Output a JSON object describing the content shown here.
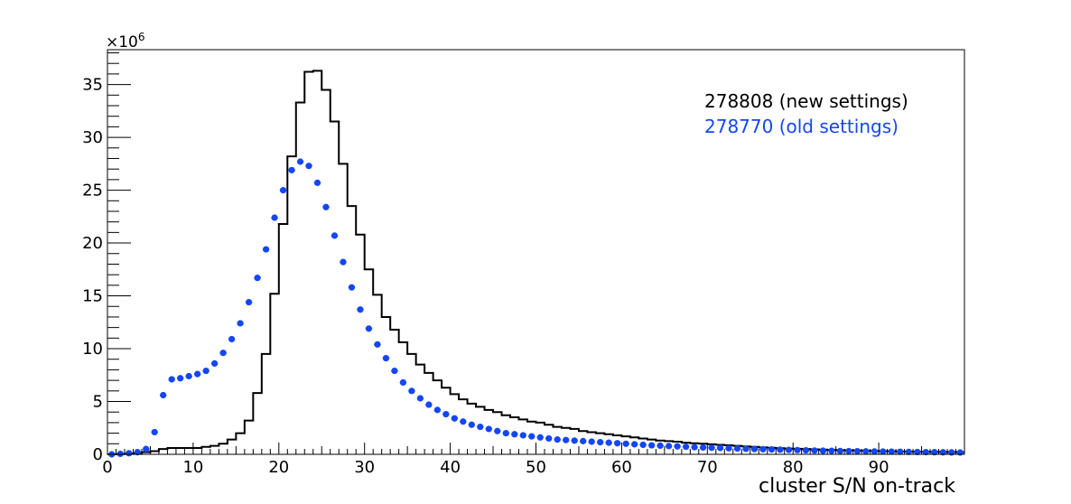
{
  "chart_data": {
    "type": "histogram",
    "xlabel": "cluster S/N on-track",
    "ylabel": "",
    "y_multiplier_label": "×10",
    "y_multiplier_exponent": "6",
    "xlim": [
      0,
      100
    ],
    "ylim": [
      0,
      38.3
    ],
    "x_ticks": [
      0,
      10,
      20,
      30,
      40,
      50,
      60,
      70,
      80,
      90
    ],
    "y_ticks": [
      0,
      5,
      10,
      15,
      20,
      25,
      30,
      35
    ],
    "bin_width": 1,
    "grid": false,
    "legend_position": "top-right",
    "series": [
      {
        "name": "278808 (new settings)",
        "style": "step",
        "color": "#000000",
        "values": [
          0,
          0.02,
          0.05,
          0.1,
          0.2,
          0.3,
          0.5,
          0.6,
          0.6,
          0.6,
          0.6,
          0.7,
          0.8,
          1.0,
          1.4,
          2.0,
          3.2,
          5.8,
          9.5,
          15.2,
          21.8,
          28.2,
          33.3,
          36.2,
          36.3,
          34.5,
          31.5,
          27.5,
          23.5,
          20.8,
          17.5,
          15.1,
          13.0,
          11.8,
          10.6,
          9.5,
          8.5,
          7.7,
          7.0,
          6.3,
          5.7,
          5.2,
          4.8,
          4.5,
          4.2,
          4.0,
          3.7,
          3.5,
          3.3,
          3.1,
          3.0,
          2.8,
          2.6,
          2.5,
          2.4,
          2.2,
          2.1,
          2.0,
          1.9,
          1.8,
          1.7,
          1.6,
          1.5,
          1.4,
          1.3,
          1.25,
          1.2,
          1.1,
          1.05,
          1.0,
          0.95,
          0.9,
          0.85,
          0.8,
          0.75,
          0.7,
          0.65,
          0.62,
          0.58,
          0.55,
          0.52,
          0.5,
          0.47,
          0.45,
          0.42,
          0.4,
          0.38,
          0.36,
          0.34,
          0.32,
          0.3,
          0.29,
          0.27,
          0.26,
          0.25,
          0.24,
          0.23,
          0.22,
          0.21,
          0.2
        ]
      },
      {
        "name": "278770 (old settings)",
        "style": "markers",
        "color": "#1446f5",
        "values": [
          0,
          0.05,
          0.1,
          0.2,
          0.5,
          2.1,
          5.6,
          7.1,
          7.2,
          7.4,
          7.6,
          7.9,
          8.6,
          9.6,
          10.9,
          12.4,
          14.4,
          16.7,
          19.4,
          22.4,
          25.0,
          26.9,
          27.7,
          27.3,
          25.7,
          23.4,
          20.7,
          18.2,
          15.8,
          13.7,
          11.9,
          10.4,
          9.1,
          7.9,
          6.8,
          6.0,
          5.3,
          4.7,
          4.2,
          3.8,
          3.4,
          3.1,
          2.8,
          2.6,
          2.4,
          2.2,
          2.0,
          1.9,
          1.8,
          1.7,
          1.6,
          1.5,
          1.4,
          1.35,
          1.3,
          1.25,
          1.2,
          1.15,
          1.1,
          1.05,
          1.0,
          0.95,
          0.9,
          0.85,
          0.82,
          0.78,
          0.75,
          0.72,
          0.68,
          0.65,
          0.62,
          0.6,
          0.57,
          0.55,
          0.52,
          0.5,
          0.48,
          0.46,
          0.44,
          0.42,
          0.4,
          0.38,
          0.36,
          0.34,
          0.33,
          0.31,
          0.3,
          0.29,
          0.28,
          0.27,
          0.26,
          0.25,
          0.24,
          0.23,
          0.22,
          0.21,
          0.2,
          0.19,
          0.18,
          0.17
        ]
      }
    ]
  }
}
